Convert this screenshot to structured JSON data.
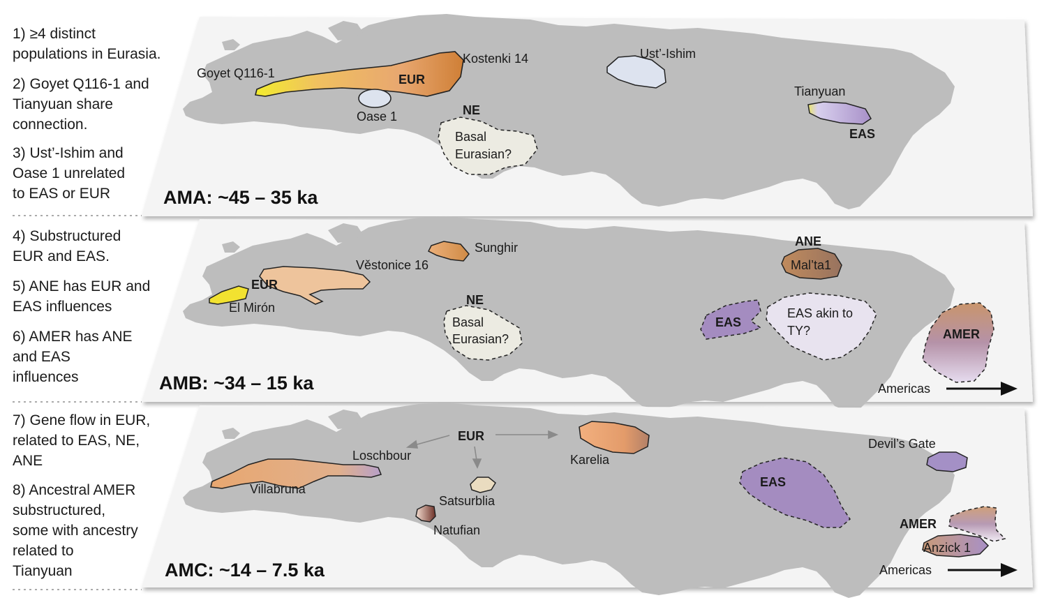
{
  "panels": [
    {
      "period": "AMA: ~45 – 35 ka",
      "notes": [
        "1) ≥4 distinct",
        "populations in Eurasia.",
        "2) Goyet Q116-1 and",
        "Tianyuan share",
        "connection.",
        "3) Ust’-Ishim and",
        "Oase 1 unrelated",
        "to EAS or EUR"
      ],
      "labels": {
        "goyet": "Goyet Q116-1",
        "kostenki": "Kostenki 14",
        "eur": "EUR",
        "oase": "Oase 1",
        "ne": "NE",
        "basal1": "Basal",
        "basal2": "Eurasian?",
        "ustishim": "Ust’-Ishim",
        "tianyuan": "Tianyuan",
        "eas": "EAS"
      }
    },
    {
      "period": "AMB: ~34 – 15 ka",
      "notes": [
        "4) Substructured",
        "EUR and EAS.",
        "5) ANE has EUR and",
        "EAS influences",
        "6) AMER has ANE",
        "and EAS",
        "influences"
      ],
      "labels": {
        "sunghir": "Sunghir",
        "vestonice": "Věstonice 16",
        "eur": "EUR",
        "elmiron": "El Mirón",
        "ne": "NE",
        "basal1": "Basal",
        "basal2": "Eurasian?",
        "ane": "ANE",
        "malta": "Mal’ta1",
        "eas": "EAS",
        "akin1": "EAS akin to",
        "akin2": "TY?",
        "amer": "AMER",
        "americas": "Americas"
      }
    },
    {
      "period": "AMC: ~14 – 7.5 ka",
      "notes": [
        "7) Gene flow in EUR,",
        "related to EAS, NE,",
        "ANE",
        "8) Ancestral AMER",
        "substructured,",
        "some with ancestry",
        "related to",
        "Tianyuan"
      ],
      "labels": {
        "eur": "EUR",
        "loschbour": "Loschbour",
        "villabruna": "Villabruna",
        "karelia": "Karelia",
        "satsurblia": "Satsurblia",
        "natufian": "Natufian",
        "eas": "EAS",
        "devils": "Devil’s Gate",
        "amer": "AMER",
        "anzick": "Anzick 1",
        "americas": "Americas"
      }
    }
  ],
  "colors": {
    "eur": "#e8a770",
    "eas": "#a48cc0",
    "ne": "#ecebe2",
    "ane": "#a87d5e",
    "ust": "#dce3ef",
    "goyet": "#f2e230",
    "plane": "#f4f4f4",
    "land": "#bdbdbd"
  }
}
